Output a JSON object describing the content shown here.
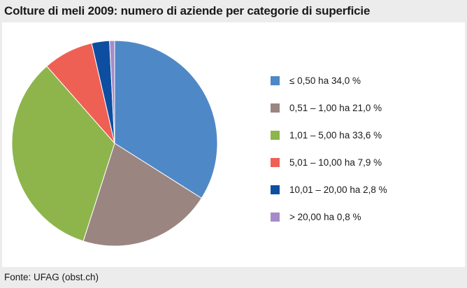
{
  "chart_data": {
    "type": "pie",
    "title": "Colture di meli 2009: numero di aziende per categorie di superficie",
    "categories": [
      "≤ 0,50 ha",
      "0,51 – 1,00 ha",
      "1,01 – 5,00 ha",
      "5,01 – 10,00 ha",
      "10,01 – 20,00 ha",
      "> 20,00 ha"
    ],
    "values": [
      34.0,
      21.0,
      33.6,
      7.9,
      2.8,
      0.8
    ],
    "legend_labels": [
      "≤ 0,50 ha 34,0 %",
      "0,51 – 1,00 ha 21,0 %",
      "1,01 – 5,00 ha 33,6 %",
      "5,01 – 10,00 ha 7,9 %",
      "10,01 – 20,00 ha 2,8 %",
      "> 20,00 ha 0,8 %"
    ],
    "colors": [
      "#4f88c6",
      "#9b8580",
      "#8db54b",
      "#ee6054",
      "#0e4ea0",
      "#a78bc8"
    ],
    "legend_position": "right",
    "source": "Fonte: UFAG (obst.ch)"
  }
}
